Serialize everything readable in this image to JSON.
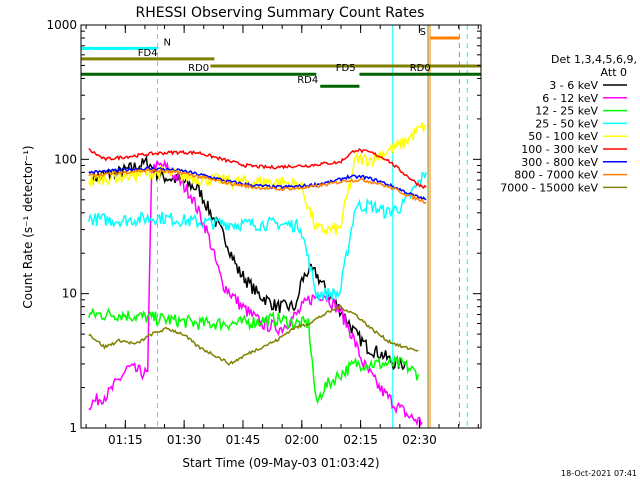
{
  "chart_data": {
    "type": "line",
    "title": "RHESSI Observing Summary Count Rates",
    "xlabel": "Start Time (09-May-03 01:03:42)",
    "ylabel": "Count Rate (s⁻¹ detector⁻¹)",
    "x_unit": "minutes after 01:03:42",
    "xlim": [
      0,
      102
    ],
    "ylim": [
      1,
      1000
    ],
    "yscale": "log",
    "x_ticks": [
      "01:15",
      "01:30",
      "01:45",
      "02:00",
      "02:15",
      "02:30"
    ],
    "x_tick_minutes": [
      11.3,
      26.3,
      41.3,
      56.3,
      71.3,
      86.3
    ],
    "y_ticks": [
      "1",
      "10",
      "100",
      "1000"
    ],
    "y_tick_values": [
      1,
      10,
      100,
      1000
    ],
    "legend_header": [
      "Det 1,3,4,5,6,9,",
      "Att 0"
    ],
    "footer_date": "18-Oct-2021 07:41",
    "series": [
      {
        "name": "3 - 6 keV",
        "color": "#000000",
        "x": [
          3,
          10,
          17,
          20,
          25,
          30,
          33,
          37,
          40,
          45,
          50,
          55,
          56,
          58,
          60,
          63,
          67,
          70,
          73,
          77,
          80,
          83
        ],
        "y": [
          73,
          80,
          95,
          75,
          70,
          60,
          40,
          25,
          15,
          10,
          8,
          8,
          12,
          15,
          14,
          10,
          7,
          5,
          4,
          3.5,
          3,
          3
        ]
      },
      {
        "name": "6 - 12 keV",
        "color": "#ff00ff",
        "x": [
          2,
          7,
          12,
          17,
          18,
          21,
          24,
          28,
          32,
          36,
          41,
          46,
          51,
          55,
          58,
          62,
          66,
          69,
          72,
          76,
          80,
          84,
          87
        ],
        "y": [
          1.5,
          1.8,
          2.8,
          2.5,
          85,
          90,
          75,
          55,
          30,
          12,
          8,
          6,
          5.5,
          7,
          9,
          10,
          7.5,
          5,
          3,
          2,
          1.5,
          1.2,
          1.1
        ]
      },
      {
        "name": "12 - 25 keV",
        "color": "#00ff00",
        "x": [
          2,
          10,
          20,
          30,
          40,
          50,
          55,
          58,
          60,
          62,
          66,
          70,
          74,
          78,
          82,
          86
        ],
        "y": [
          7,
          7,
          6.5,
          6,
          6,
          6.5,
          6,
          6,
          1.5,
          2,
          2.5,
          3,
          3,
          3,
          3,
          2.5
        ]
      },
      {
        "name": "25 - 50 keV",
        "color": "#00ffff",
        "x": [
          2,
          10,
          20,
          30,
          40,
          50,
          56,
          60,
          63,
          66,
          70,
          74,
          78,
          82,
          85,
          88
        ],
        "y": [
          36,
          35,
          37,
          34,
          33,
          33,
          32,
          10,
          10,
          10,
          45,
          45,
          40,
          45,
          60,
          80
        ]
      },
      {
        "name": "50 - 100 keV",
        "color": "#ffff00",
        "x": [
          2,
          10,
          20,
          30,
          40,
          50,
          56,
          60,
          64,
          66,
          70,
          74,
          78,
          82,
          86,
          88
        ],
        "y": [
          70,
          75,
          80,
          72,
          68,
          68,
          65,
          30,
          30,
          30,
          100,
          100,
          115,
          130,
          165,
          180
        ]
      },
      {
        "name": "100 - 300 keV",
        "color": "#ff0000",
        "x": [
          2,
          6,
          12,
          18,
          24,
          30,
          36,
          42,
          48,
          54,
          58,
          62,
          66,
          70,
          74,
          78,
          82,
          86,
          88
        ],
        "y": [
          118,
          100,
          105,
          110,
          113,
          112,
          100,
          90,
          87,
          89,
          90,
          93,
          95,
          118,
          112,
          100,
          80,
          65,
          62
        ]
      },
      {
        "name": "300 - 800 keV",
        "color": "#0000ff",
        "x": [
          2,
          8,
          14,
          20,
          26,
          32,
          38,
          44,
          50,
          56,
          60,
          64,
          68,
          72,
          76,
          80,
          84,
          88
        ],
        "y": [
          80,
          82,
          85,
          85,
          82,
          75,
          68,
          64,
          62,
          63,
          65,
          68,
          74,
          74,
          69,
          62,
          55,
          50
        ]
      },
      {
        "name": "800 - 7000 keV",
        "color": "#ff8000",
        "x": [
          2,
          8,
          14,
          20,
          26,
          32,
          38,
          44,
          50,
          56,
          60,
          64,
          68,
          72,
          76,
          80,
          84,
          88
        ],
        "y": [
          76,
          78,
          82,
          82,
          79,
          72,
          66,
          62,
          60,
          61,
          63,
          66,
          70,
          70,
          66,
          60,
          53,
          48
        ]
      },
      {
        "name": "7000 - 15000 keV",
        "color": "#808000",
        "x": [
          2,
          6,
          10,
          14,
          18,
          22,
          26,
          30,
          34,
          38,
          42,
          46,
          50,
          54,
          58,
          62,
          66,
          70,
          74,
          78,
          82,
          86
        ],
        "y": [
          5,
          4,
          4.5,
          4.2,
          5,
          5.5,
          5,
          4,
          3.5,
          3,
          3.5,
          4,
          4.5,
          5.5,
          6,
          7,
          8,
          7,
          5.5,
          4.5,
          4,
          3.8
        ]
      }
    ],
    "annotations": [
      {
        "label": "N",
        "color": "#00ffff",
        "x0": 0,
        "x1": 19.5,
        "y": 670
      },
      {
        "label": "FD4",
        "color": "#808000",
        "x0": 0,
        "x1": 34,
        "y": 560
      },
      {
        "label": "FD5",
        "color": "#808000",
        "x0": 33,
        "x1": 102,
        "y": 495
      },
      {
        "label": "RD0",
        "color": "#006400",
        "x0": 0,
        "x1": 60,
        "y": 430
      },
      {
        "label": "RD0",
        "color": "#006400",
        "x0": 71,
        "x1": 102,
        "y": 430
      },
      {
        "label": "RD4",
        "color": "#006400",
        "x0": 61,
        "x1": 71,
        "y": 350
      },
      {
        "label": "S",
        "color": "#ff8000",
        "x0": 89,
        "x1": 96.5,
        "y": 800
      }
    ],
    "vertical_markers": [
      {
        "x": 0,
        "color": "#00ffff",
        "style": "dashed"
      },
      {
        "x": 19.5,
        "color": "#00ffff",
        "style": "dashed"
      },
      {
        "x": 79.5,
        "color": "#00ffff",
        "style": "solid"
      },
      {
        "x": 88.5,
        "color": "#808000",
        "style": "solid"
      },
      {
        "x": 89,
        "color": "#ff8000",
        "style": "solid"
      },
      {
        "x": 96.5,
        "color": "#ff8000",
        "style": "dashed"
      },
      {
        "x": 98.5,
        "color": "#00ffff",
        "style": "dashed"
      }
    ]
  }
}
